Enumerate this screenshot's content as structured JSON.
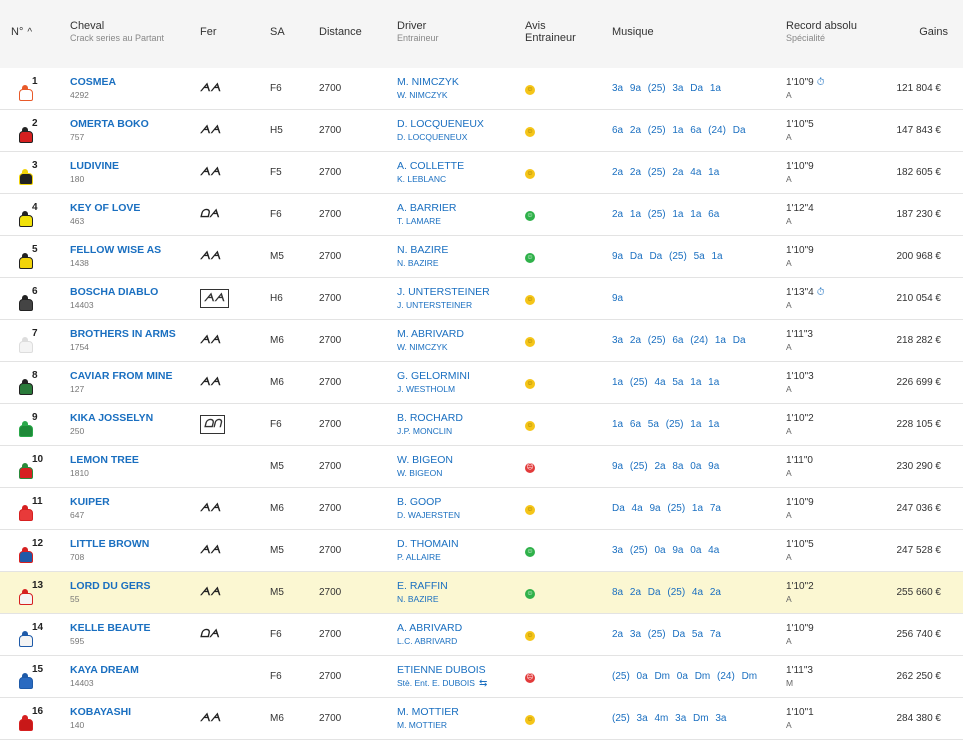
{
  "headers": {
    "num": "N°",
    "horse": "Cheval",
    "horse_sub": "Crack series au Partant",
    "fer": "Fer",
    "sa": "SA",
    "distance": "Distance",
    "driver": "Driver",
    "driver_sub": "Entraineur",
    "avis_1": "Avis",
    "avis_2": "Entraineur",
    "musique": "Musique",
    "record": "Record absolu",
    "record_sub": "Spécialité",
    "gains": "Gains"
  },
  "colors": {
    "accent": "#1a6fc0",
    "highlight_row": "#fbf7d2",
    "good": "#2fb14a",
    "neutral": "#f5c518",
    "bad": "#e23a3a"
  },
  "rows": [
    {
      "num": "1",
      "name": "COSMEA",
      "sub": "4292",
      "fer": "ᗅᗅ",
      "sa": "F6",
      "dist": "2700",
      "driver": "M. NIMCZYK",
      "trainer": "W. NIMCZYK",
      "avis": "neutral",
      "musique": "3a 9a (25) 3a Da 1a",
      "record": "1'10\"9",
      "record_chrono": "⏱",
      "rsub": "A",
      "gain": "121 804 €",
      "silk": [
        "#e85a2a",
        "#fff"
      ]
    },
    {
      "num": "2",
      "name": "OMERTA BOKO",
      "sub": "757",
      "fer": "ᗅᗅ",
      "sa": "H5",
      "dist": "2700",
      "driver": "D. LOCQUENEUX",
      "trainer": "D. LOCQUENEUX",
      "avis": "neutral",
      "musique": "6a 2a (25) 1a 6a (24) Da",
      "record": "1'10\"5",
      "record_chrono": "",
      "rsub": "A",
      "gain": "147 843 €",
      "silk": [
        "#222",
        "#d62020"
      ]
    },
    {
      "num": "3",
      "name": "LUDIVINE",
      "sub": "180",
      "fer": "ᗅᗅ",
      "sa": "F5",
      "dist": "2700",
      "driver": "A. COLLETTE",
      "trainer": "K. LEBLANC",
      "avis": "neutral",
      "musique": "2a 2a (25) 2a 4a 1a",
      "record": "1'10\"9",
      "record_chrono": "",
      "rsub": "A",
      "gain": "182 605 €",
      "silk": [
        "#f2d40a",
        "#222"
      ]
    },
    {
      "num": "4",
      "name": "KEY OF LOVE",
      "sub": "463",
      "fer": "ᗝᗅ",
      "sa": "F6",
      "dist": "2700",
      "driver": "A. BARRIER",
      "trainer": "T. LAMARE",
      "avis": "good",
      "musique": "2a 1a (25) 1a 1a 6a",
      "record": "1'12\"4",
      "record_chrono": "",
      "rsub": "A",
      "gain": "187 230 €",
      "silk": [
        "#222",
        "#f2e20a"
      ]
    },
    {
      "num": "5",
      "name": "FELLOW WISE AS",
      "sub": "1438",
      "fer": "ᗅᗅ",
      "sa": "M5",
      "dist": "2700",
      "driver": "N. BAZIRE",
      "trainer": "N. BAZIRE",
      "avis": "good",
      "musique": "9a Da Da (25) 5a 1a",
      "record": "1'10\"9",
      "record_chrono": "",
      "rsub": "A",
      "gain": "200 968 €",
      "silk": [
        "#222",
        "#f2d40a"
      ]
    },
    {
      "num": "6",
      "name": "BOSCHA DIABLO",
      "sub": "14403",
      "fer": "ᗅᗅ",
      "fer_box": true,
      "sa": "H6",
      "dist": "2700",
      "driver": "J. UNTERSTEINER",
      "trainer": "J. UNTERSTEINER",
      "avis": "neutral",
      "musique": "9a",
      "record": "1'13\"4",
      "record_chrono": "⏱",
      "rsub": "A",
      "gain": "210 054 €",
      "silk": [
        "#222",
        "#444"
      ]
    },
    {
      "num": "7",
      "name": "BROTHERS IN ARMS",
      "sub": "1754",
      "fer": "ᗅᗅ",
      "sa": "M6",
      "dist": "2700",
      "driver": "M. ABRIVARD",
      "trainer": "W. NIMCZYK",
      "avis": "neutral",
      "musique": "3a 2a (25) 6a (24) 1a Da",
      "record": "1'11\"3",
      "record_chrono": "",
      "rsub": "A",
      "gain": "218 282 €",
      "silk": [
        "#ddd",
        "#f4f4f4"
      ]
    },
    {
      "num": "8",
      "name": "CAVIAR FROM MINE",
      "sub": "127",
      "fer": "ᗅᗅ",
      "sa": "M6",
      "dist": "2700",
      "driver": "G. GELORMINI",
      "trainer": "J. WESTHOLM",
      "avis": "neutral",
      "musique": "1a (25) 4a 5a 1a 1a",
      "record": "1'10\"3",
      "record_chrono": "",
      "rsub": "A",
      "gain": "226 699 €",
      "silk": [
        "#222",
        "#2a7a3a"
      ]
    },
    {
      "num": "9",
      "name": "KIKA JOSSELYN",
      "sub": "250",
      "fer": "ᗝᑎ",
      "fer_box": true,
      "sa": "F6",
      "dist": "2700",
      "driver": "B. ROCHARD",
      "trainer": "J.P. MONCLIN",
      "avis": "neutral",
      "musique": "1a 6a 5a (25) 1a 1a",
      "record": "1'10\"2",
      "record_chrono": "",
      "rsub": "A",
      "gain": "228 105 €",
      "silk": [
        "#2aa84a",
        "#1e8a38"
      ]
    },
    {
      "num": "10",
      "name": "LEMON TREE",
      "sub": "1810",
      "fer": "",
      "sa": "M5",
      "dist": "2700",
      "driver": "W. BIGEON",
      "trainer": "W. BIGEON",
      "avis": "bad",
      "musique": "9a (25) 2a 8a 0a 9a",
      "record": "1'11\"0",
      "record_chrono": "",
      "rsub": "A",
      "gain": "230 290 €",
      "silk": [
        "#2a8a3a",
        "#d62020"
      ]
    },
    {
      "num": "11",
      "name": "KUIPER",
      "sub": "647",
      "fer": "ᗅᗅ",
      "sa": "M6",
      "dist": "2700",
      "driver": "B. GOOP",
      "trainer": "D. WAJERSTEN",
      "avis": "neutral",
      "musique": "Da 4a 9a (25) 1a 7a",
      "record": "1'10\"9",
      "record_chrono": "",
      "rsub": "A",
      "gain": "247 036 €",
      "silk": [
        "#d62020",
        "#e83a3a"
      ]
    },
    {
      "num": "12",
      "name": "LITTLE BROWN",
      "sub": "708",
      "fer": "ᗅᗅ",
      "sa": "M5",
      "dist": "2700",
      "driver": "D. THOMAIN",
      "trainer": "P. ALLAIRE",
      "avis": "good",
      "musique": "3a (25) 0a 9a 0a 4a",
      "record": "1'10\"5",
      "record_chrono": "",
      "rsub": "A",
      "gain": "247 528 €",
      "silk": [
        "#d62020",
        "#1e5aa8"
      ]
    },
    {
      "num": "13",
      "name": "LORD DU GERS",
      "sub": "55",
      "fer": "ᗅᗅ",
      "sa": "M5",
      "dist": "2700",
      "driver": "E. RAFFIN",
      "trainer": "N. BAZIRE",
      "avis": "good",
      "musique": "8a 2a Da (25) 4a 2a",
      "record": "1'10\"2",
      "record_chrono": "",
      "rsub": "A",
      "gain": "255 660 €",
      "silk": [
        "#d62020",
        "#f4f4f4"
      ],
      "highlight": true
    },
    {
      "num": "14",
      "name": "KELLE BEAUTE",
      "sub": "595",
      "fer": "ᗝᗅ",
      "sa": "F6",
      "dist": "2700",
      "driver": "A. ABRIVARD",
      "trainer": "L.C. ABRIVARD",
      "avis": "neutral",
      "musique": "2a 3a (25) Da 5a 7a",
      "record": "1'10\"9",
      "record_chrono": "",
      "rsub": "A",
      "gain": "256 740 €",
      "silk": [
        "#1e5aa8",
        "#f4f4f4"
      ]
    },
    {
      "num": "15",
      "name": "KAYA DREAM",
      "sub": "14403",
      "fer": "",
      "sa": "F6",
      "dist": "2700",
      "driver": "ETIENNE DUBOIS",
      "trainer": "Stè. Ent. E. DUBOIS",
      "trainer_swap": "⇆",
      "avis": "bad",
      "musique": "(25) 0a Dm 0a Dm (24) Dm",
      "record": "1'11\"3",
      "record_chrono": "",
      "rsub": "M",
      "gain": "262 250 €",
      "silk": [
        "#1e5aa8",
        "#2a6ac0"
      ]
    },
    {
      "num": "16",
      "name": "KOBAYASHI",
      "sub": "140",
      "fer": "ᗅᗅ",
      "sa": "M6",
      "dist": "2700",
      "driver": "M. MOTTIER",
      "trainer": "M. MOTTIER",
      "avis": "neutral",
      "musique": "(25) 3a 4m 3a Dm 3a",
      "record": "1'10\"1",
      "record_chrono": "",
      "rsub": "A",
      "gain": "284 380 €",
      "silk": [
        "#d62020",
        "#c81818"
      ]
    }
  ]
}
